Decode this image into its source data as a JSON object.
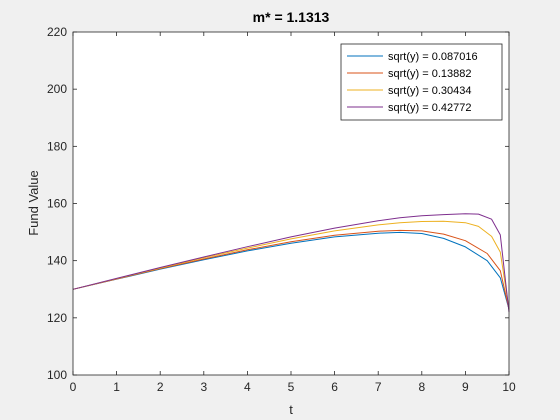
{
  "chart_data": {
    "type": "line",
    "title": "m* = 1.1313",
    "xlabel": "t",
    "ylabel": "Fund Value",
    "xlim": [
      0,
      10
    ],
    "ylim": [
      100,
      220
    ],
    "xticks": [
      "0",
      "1",
      "2",
      "3",
      "4",
      "5",
      "6",
      "7",
      "8",
      "9",
      "10"
    ],
    "yticks": [
      "100",
      "120",
      "140",
      "160",
      "180",
      "200",
      "220"
    ],
    "grid": false,
    "legend_position": "top-right",
    "series": [
      {
        "name": "sqrt(y) = 0.087016",
        "color": "#0072BD",
        "x": [
          0,
          1,
          2,
          3,
          4,
          5,
          6,
          7,
          7.5,
          8,
          8.5,
          9,
          9.5,
          9.8,
          10
        ],
        "y": [
          130,
          133.5,
          137,
          140.3,
          143.4,
          146.1,
          148.3,
          149.6,
          149.9,
          149.5,
          147.8,
          144.8,
          140,
          134,
          123
        ]
      },
      {
        "name": "sqrt(y) = 0.13882",
        "color": "#D95319",
        "x": [
          0,
          1,
          2,
          3,
          4,
          5,
          6,
          7,
          7.5,
          8,
          8.5,
          9,
          9.5,
          9.8,
          10
        ],
        "y": [
          130,
          133.6,
          137.2,
          140.6,
          143.8,
          146.6,
          148.9,
          150.3,
          150.6,
          150.4,
          149.3,
          147,
          142.5,
          136.5,
          123
        ]
      },
      {
        "name": "sqrt(y) = 0.30434",
        "color": "#EDB120",
        "x": [
          0,
          1,
          2,
          3,
          4,
          5,
          6,
          7,
          7.5,
          8,
          8.5,
          9,
          9.3,
          9.6,
          9.8,
          10
        ],
        "y": [
          130,
          133.7,
          137.4,
          141,
          144.4,
          147.6,
          150.4,
          152.5,
          153.3,
          153.7,
          153.8,
          153.3,
          152,
          148.5,
          143,
          123
        ]
      },
      {
        "name": "sqrt(y) = 0.42772",
        "color": "#7E2F8E",
        "x": [
          0,
          1,
          2,
          3,
          4,
          5,
          6,
          7,
          7.5,
          8,
          8.5,
          9,
          9.3,
          9.6,
          9.8,
          10
        ],
        "y": [
          130,
          133.8,
          137.6,
          141.3,
          144.9,
          148.3,
          151.4,
          154,
          155,
          155.7,
          156.1,
          156.4,
          156.3,
          154.5,
          149,
          122
        ]
      }
    ]
  }
}
